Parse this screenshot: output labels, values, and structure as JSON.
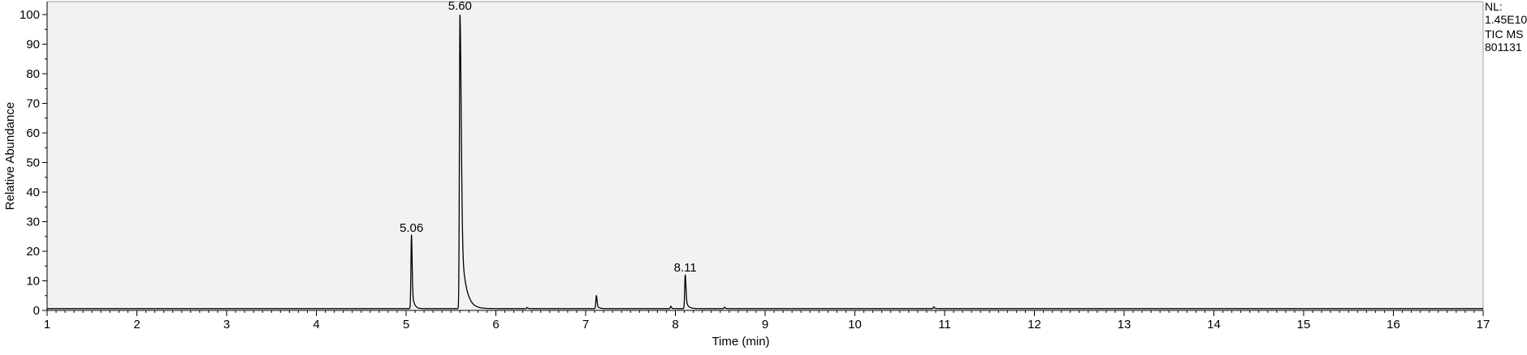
{
  "header": {
    "nl_label": "NL:",
    "nl_value": "1.45E10",
    "scan_filter": "TIC  MS",
    "file_name": "801131"
  },
  "colors": {
    "plot_background": "#f2f2f2",
    "trace": "#000000",
    "axis": "#000000",
    "frame": "#a0a0a0"
  },
  "chart_data": {
    "type": "line",
    "title": "",
    "xlabel": "Time (min)",
    "ylabel": "Relative Abundance",
    "xlim": [
      1,
      17
    ],
    "ylim": [
      0,
      100
    ],
    "x_ticks": [
      1,
      2,
      3,
      4,
      5,
      6,
      7,
      8,
      9,
      10,
      11,
      12,
      13,
      14,
      15,
      16,
      17
    ],
    "x_tick_labels": [
      "1",
      "2",
      "3",
      "4",
      "5",
      "6",
      "7",
      "8",
      "9",
      "10",
      "11",
      "12",
      "13",
      "14",
      "15",
      "16",
      "17"
    ],
    "y_ticks": [
      0,
      10,
      20,
      30,
      40,
      50,
      60,
      70,
      80,
      90,
      100
    ],
    "y_tick_labels": [
      "0",
      "10",
      "20",
      "30",
      "40",
      "50",
      "60",
      "70",
      "80",
      "90",
      "100"
    ],
    "x_minor_step": 0.1,
    "grid": false,
    "legend": "none",
    "baseline": 0.6,
    "peaks": [
      {
        "rt": 5.06,
        "height": 25,
        "label": "5.06",
        "tail": 0.3
      },
      {
        "rt": 5.6,
        "height": 100,
        "label": "5.60",
        "tail": 1.0
      },
      {
        "rt": 6.35,
        "height": 0.4,
        "label": "",
        "tail": 0.2
      },
      {
        "rt": 7.12,
        "height": 4.5,
        "label": "",
        "tail": 0.3
      },
      {
        "rt": 7.95,
        "height": 0.8,
        "label": "",
        "tail": 0.2
      },
      {
        "rt": 8.11,
        "height": 11.5,
        "label": "8.11",
        "tail": 0.4
      },
      {
        "rt": 8.55,
        "height": 0.5,
        "label": "",
        "tail": 0.2
      },
      {
        "rt": 10.88,
        "height": 0.6,
        "label": "",
        "tail": 0.2
      }
    ]
  }
}
